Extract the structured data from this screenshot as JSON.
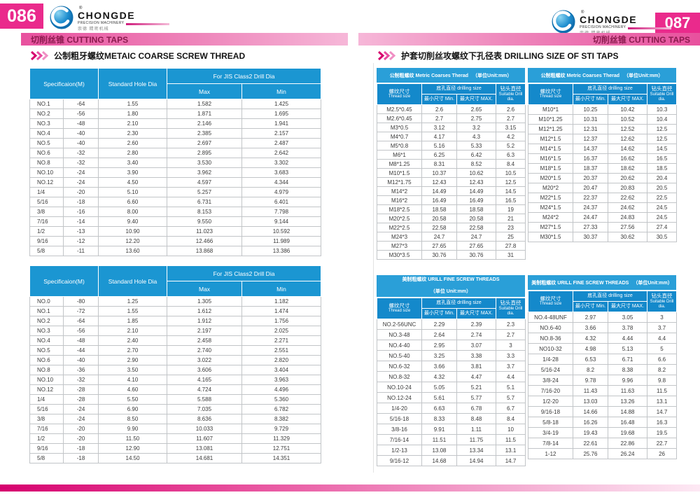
{
  "brand": {
    "registered": "®",
    "wordmark": "CHONGDE",
    "tagline": "PRECISION MACHINERY",
    "chinese": "崇德 精密机械"
  },
  "colors": {
    "accent_pink": "#ea2a8c",
    "header_blue": "#1b96d2",
    "bar_text_maroon": "#8b1a4e"
  },
  "left_page": {
    "page_number": "086",
    "section_bar": "切削丝锥 CUTTING TAPS",
    "section_title": "公制粗牙螺纹METAIC COARSE SCREW THREAD",
    "col_headers": {
      "spec": "Specificaion(M)",
      "hole": "Standard Hole Dia",
      "drill_group": "For JIS Class2 Drill Dia",
      "max": "Max",
      "min": "Min"
    },
    "table1_rows": [
      [
        "NO.1",
        "-64",
        "1.55",
        "1.582",
        "1.425"
      ],
      [
        "NO.2",
        "-56",
        "1.80",
        "1.871",
        "1.695"
      ],
      [
        "NO.3",
        "-48",
        "2.10",
        "2.146",
        "1.941"
      ],
      [
        "NO.4",
        "-40",
        "2.30",
        "2.385",
        "2.157"
      ],
      [
        "NO.5",
        "-40",
        "2.60",
        "2.697",
        "2.487"
      ],
      [
        "NO.6",
        "-32",
        "2.80",
        "2.895",
        "2.642"
      ],
      [
        "NO.8",
        "-32",
        "3.40",
        "3.530",
        "3.302"
      ],
      [
        "NO.10",
        "-24",
        "3.90",
        "3.962",
        "3.683"
      ],
      [
        "NO.12",
        "-24",
        "4.50",
        "4.597",
        "4.344"
      ],
      [
        "1/4",
        "-20",
        "5.10",
        "5.257",
        "4.979"
      ],
      [
        "5/16",
        "-18",
        "6.60",
        "6.731",
        "6.401"
      ],
      [
        "3/8",
        "-16",
        "8.00",
        "8.153",
        "7.798"
      ],
      [
        "7/16",
        "-14",
        "9.40",
        "9.550",
        "9.144"
      ],
      [
        "1/2",
        "-13",
        "10.90",
        "11.023",
        "10.592"
      ],
      [
        "9/16",
        "-12",
        "12.20",
        "12.466",
        "11.989"
      ],
      [
        "5/8",
        "-11",
        "13.60",
        "13.868",
        "13.386"
      ]
    ],
    "table2_rows": [
      [
        "NO.0",
        "-80",
        "1.25",
        "1.305",
        "1.182"
      ],
      [
        "NO.1",
        "-72",
        "1.55",
        "1.612",
        "1.474"
      ],
      [
        "NO.2",
        "-64",
        "1.85",
        "1.912",
        "1.756"
      ],
      [
        "NO.3",
        "-56",
        "2.10",
        "2.197",
        "2.025"
      ],
      [
        "NO.4",
        "-48",
        "2.40",
        "2.458",
        "2.271"
      ],
      [
        "NO.5",
        "-44",
        "2.70",
        "2.740",
        "2.551"
      ],
      [
        "NO.6",
        "-40",
        "2.90",
        "3.022",
        "2.820"
      ],
      [
        "NO.8",
        "-36",
        "3.50",
        "3.606",
        "3.404"
      ],
      [
        "NO.10",
        "-32",
        "4.10",
        "4.165",
        "3.963"
      ],
      [
        "NO.12",
        "-28",
        "4.60",
        "4.724",
        "4.496"
      ],
      [
        "1/4",
        "-28",
        "5.50",
        "5.588",
        "5.360"
      ],
      [
        "5/16",
        "-24",
        "6.90",
        "7.035",
        "6.782"
      ],
      [
        "3/8",
        "-24",
        "8.50",
        "8.636",
        "8.382"
      ],
      [
        "7/16",
        "-20",
        "9.90",
        "10.033",
        "9.729"
      ],
      [
        "1/2",
        "-20",
        "11.50",
        "11.607",
        "11.329"
      ],
      [
        "9/16",
        "-18",
        "12.90",
        "13.081",
        "12.751"
      ],
      [
        "5/8",
        "-18",
        "14.50",
        "14.681",
        "14.351"
      ]
    ]
  },
  "right_page": {
    "page_number": "087",
    "section_bar": "切削丝锥 CUTTING TAPS",
    "section_title": "护套切削丝攻螺纹下孔径表  DRILLING SIZE OF STI TAPS",
    "col_headers": {
      "thread_cn": "螺纹尺寸",
      "thread_en": "Thread size",
      "drill_group": "底孔直径 drilling size",
      "min": "最小尺寸  Min.",
      "max": "最大尺寸  MAX.",
      "suitable_cn": "钻头直径",
      "suitable_en": "Suitable Drill dia."
    },
    "tables": [
      {
        "title": "公制粗螺纹  Metric Coarses Therad",
        "unit": "（单位Unit:mm）",
        "rows": [
          [
            "M2.5*0.45",
            "2.6",
            "2.65",
            "2.6"
          ],
          [
            "M2.6*0.45",
            "2.7",
            "2.75",
            "2.7"
          ],
          [
            "M3*0.5",
            "3.12",
            "3.2",
            "3.15"
          ],
          [
            "M4*0.7",
            "4.17",
            "4.3",
            "4.2"
          ],
          [
            "M5*0.8",
            "5.16",
            "5.33",
            "5.2"
          ],
          [
            "M6*1",
            "6.25",
            "6.42",
            "6.3"
          ],
          [
            "M8*1.25",
            "8.31",
            "8.52",
            "8.4"
          ],
          [
            "M10*1.5",
            "10.37",
            "10.62",
            "10.5"
          ],
          [
            "M12*1.75",
            "12.43",
            "12.43",
            "12.5"
          ],
          [
            "M14*2",
            "14.49",
            "14.49",
            "14.5"
          ],
          [
            "M16*2",
            "16.49",
            "16.49",
            "16.5"
          ],
          [
            "M18*2.5",
            "18.58",
            "18.58",
            "19"
          ],
          [
            "M20*2.5",
            "20.58",
            "20.58",
            "21"
          ],
          [
            "M22*2.5",
            "22.58",
            "22.58",
            "23"
          ],
          [
            "M24*3",
            "24.7",
            "24.7",
            "25"
          ],
          [
            "M27*3",
            "27.65",
            "27.65",
            "27.8"
          ],
          [
            "M30*3.5",
            "30.76",
            "30.76",
            "31"
          ]
        ]
      },
      {
        "title": "公制粗螺纹  Metric Coarses Therad",
        "unit": "（单位Unit:mm）",
        "rows": [
          [
            "M10*1",
            "10.25",
            "10.42",
            "10.3"
          ],
          [
            "M10*1.25",
            "10.31",
            "10.52",
            "10.4"
          ],
          [
            "M12*1.25",
            "12.31",
            "12.52",
            "12.5"
          ],
          [
            "M12*1.5",
            "12.37",
            "12.62",
            "12.5"
          ],
          [
            "M14*1.5",
            "14.37",
            "14.62",
            "14.5"
          ],
          [
            "M16*1.5",
            "16.37",
            "16.62",
            "16.5"
          ],
          [
            "M18*1.5",
            "18.37",
            "18.62",
            "18.5"
          ],
          [
            "M20*1.5",
            "20.37",
            "20.62",
            "20.4"
          ],
          [
            "M20*2",
            "20.47",
            "20.83",
            "20.5"
          ],
          [
            "M22*1.5",
            "22.37",
            "22.62",
            "22.5"
          ],
          [
            "M24*1.5",
            "24.37",
            "24.62",
            "24.5"
          ],
          [
            "M24*2",
            "24.47",
            "24.83",
            "24.5"
          ],
          [
            "M27*1.5",
            "27.33",
            "27.56",
            "27.4"
          ],
          [
            "M30*1.5",
            "30.37",
            "30.62",
            "30.5"
          ]
        ]
      },
      {
        "title": "美制粗螺纹  URILL FINE SCREW THREADS",
        "unit": "（单位 Unit:mm）",
        "rows": [
          [
            "NO.2-56UNC",
            "2.29",
            "2.39",
            "2.3"
          ],
          [
            "NO.3-48",
            "2.64",
            "2.74",
            "2.7"
          ],
          [
            "NO.4-40",
            "2.95",
            "3.07",
            "3"
          ],
          [
            "NO.5-40",
            "3.25",
            "3.38",
            "3.3"
          ],
          [
            "NO.6-32",
            "3.66",
            "3.81",
            "3.7"
          ],
          [
            "NO.8-32",
            "4.32",
            "4.47",
            "4.4"
          ],
          [
            "NO.10-24",
            "5.05",
            "5.21",
            "5.1"
          ],
          [
            "NO.12-24",
            "5.61",
            "5.77",
            "5.7"
          ],
          [
            "1/4-20",
            "6.63",
            "6.78",
            "6.7"
          ],
          [
            "5/16-18",
            "8.33",
            "8.48",
            "8.4"
          ],
          [
            "3/8-16",
            "9.91",
            "1.11",
            "10"
          ],
          [
            "7/16-14",
            "11.51",
            "11.75",
            "11.5"
          ],
          [
            "1/2-13",
            "13.08",
            "13.34",
            "13.1"
          ],
          [
            "9/16-12",
            "14.68",
            "14.94",
            "14.7"
          ]
        ]
      },
      {
        "title": "美制粗螺纹  URILL FINE SCREW THREADS",
        "unit": "（单位Unit:mm）",
        "rows": [
          [
            "NO.4-48UNF",
            "2.97",
            "3.05",
            "3"
          ],
          [
            "NO.6-40",
            "3.66",
            "3.78",
            "3.7"
          ],
          [
            "NO.8-36",
            "4.32",
            "4.44",
            "4.4"
          ],
          [
            "NO10-32",
            "4.98",
            "5.13",
            "5"
          ],
          [
            "1/4-28",
            "6.53",
            "6.71",
            "6.6"
          ],
          [
            "5/16-24",
            "8.2",
            "8.38",
            "8.2"
          ],
          [
            "3/8-24",
            "9.78",
            "9.96",
            "9.8"
          ],
          [
            "7/16-20",
            "11.43",
            "11.63",
            "11.5"
          ],
          [
            "1/2-20",
            "13.03",
            "13.26",
            "13.1"
          ],
          [
            "9/16-18",
            "14.66",
            "14.88",
            "14.7"
          ],
          [
            "5/8-18",
            "16.26",
            "16.48",
            "16.3"
          ],
          [
            "3/4-19",
            "19.43",
            "19.68",
            "19.5"
          ],
          [
            "7/8-14",
            "22.61",
            "22.86",
            "22.7"
          ],
          [
            "1-12",
            "25.76",
            "26.24",
            "26"
          ]
        ]
      }
    ]
  }
}
